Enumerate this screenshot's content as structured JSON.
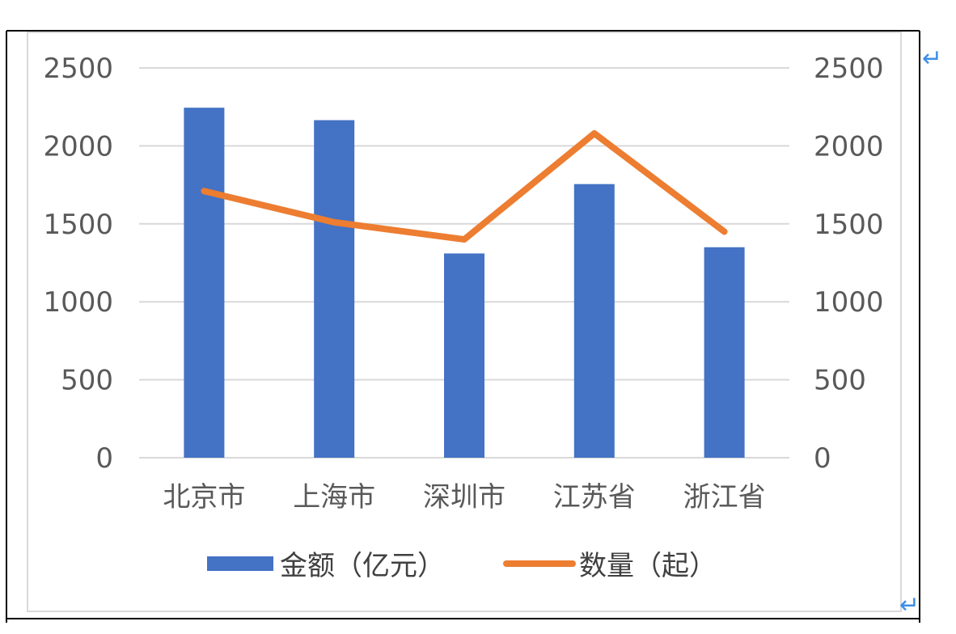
{
  "chart_data": {
    "type": "bar",
    "categories": [
      "北京市",
      "上海市",
      "深圳市",
      "江苏省",
      "浙江省"
    ],
    "series": [
      {
        "name": "金额（亿元）",
        "type": "bar",
        "axis": "left",
        "values": [
          2245,
          2165,
          1310,
          1755,
          1350
        ]
      },
      {
        "name": "数量（起）",
        "type": "line",
        "axis": "right",
        "values": [
          1710,
          1510,
          1400,
          2080,
          1450
        ]
      }
    ],
    "y_left_ticks": [
      "0",
      "500",
      "1000",
      "1500",
      "2000",
      "2500"
    ],
    "y_right_ticks": [
      "0",
      "500",
      "1000",
      "1500",
      "2000",
      "2500"
    ],
    "ylim": [
      0,
      2500
    ],
    "grid": true,
    "legend_position": "bottom"
  },
  "colors": {
    "bar": "#4472C4",
    "line": "#ED7D31",
    "grid": "#D9D9D9",
    "return_mark": "#3D8EE8"
  },
  "marks": {
    "return_glyph": "↵"
  }
}
